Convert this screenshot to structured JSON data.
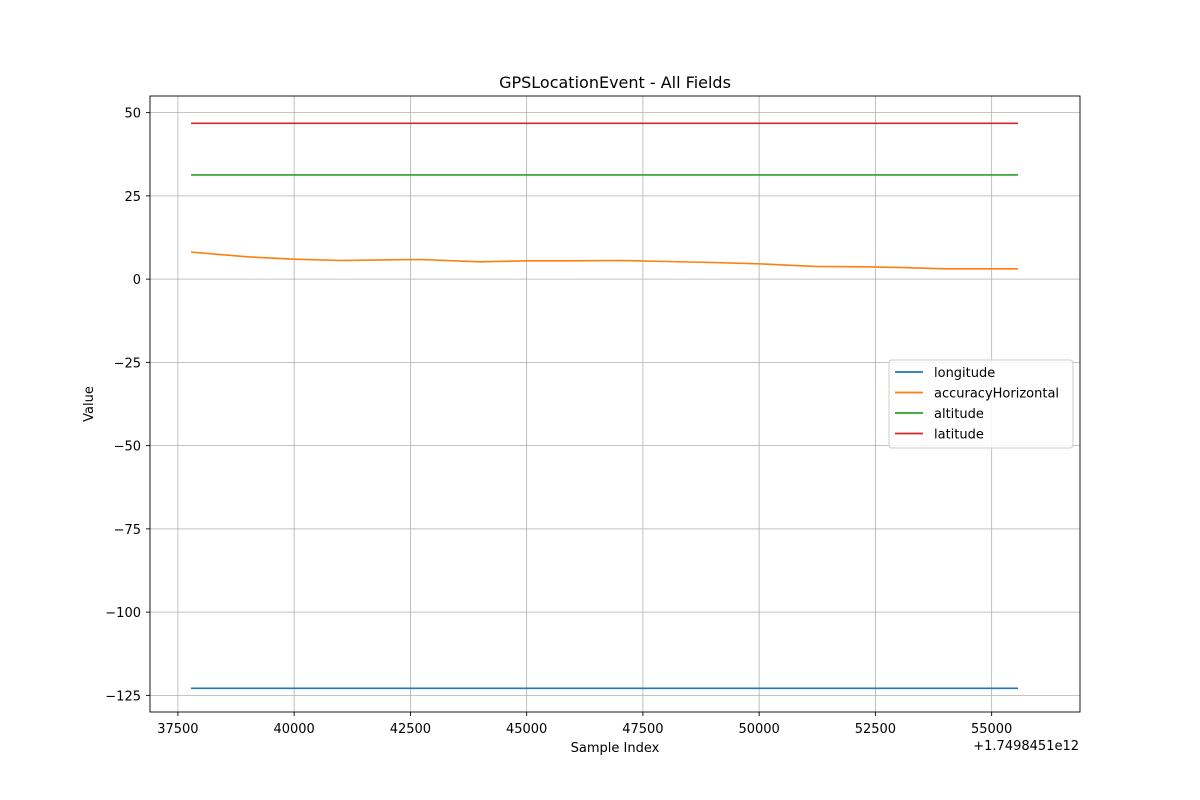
{
  "chart_data": {
    "type": "line",
    "title": "GPSLocationEvent - All Fields",
    "xlabel": "Sample Index",
    "ylabel": "Value",
    "x_offset_text": "+1.7498451e12",
    "xlim": [
      36900,
      56900
    ],
    "ylim": [
      -130,
      55
    ],
    "x_ticks": [
      37500,
      40000,
      42500,
      45000,
      47500,
      50000,
      52500,
      55000
    ],
    "y_ticks": [
      50,
      25,
      0,
      -25,
      -50,
      -75,
      -100,
      -125
    ],
    "x_tick_labels": [
      "37500",
      "40000",
      "42500",
      "45000",
      "47500",
      "50000",
      "52500",
      "55000"
    ],
    "y_tick_labels": [
      "50",
      "25",
      "0",
      "−25",
      "−50",
      "−75",
      "−100",
      "−125"
    ],
    "grid": true,
    "legend_position": "center-right",
    "series": [
      {
        "name": "longitude",
        "color": "#1f77b4",
        "points": [
          [
            37800,
            -122.9
          ],
          [
            55550,
            -122.9
          ]
        ]
      },
      {
        "name": "accuracyHorizontal",
        "color": "#ff7f0e",
        "points": [
          [
            37800,
            8.1
          ],
          [
            39000,
            6.7
          ],
          [
            40000,
            6.0
          ],
          [
            41000,
            5.6
          ],
          [
            42000,
            5.8
          ],
          [
            42700,
            5.9
          ],
          [
            44000,
            5.2
          ],
          [
            45000,
            5.5
          ],
          [
            46000,
            5.5
          ],
          [
            47000,
            5.6
          ],
          [
            48000,
            5.3
          ],
          [
            49000,
            5.0
          ],
          [
            50000,
            4.6
          ],
          [
            51200,
            3.8
          ],
          [
            52300,
            3.7
          ],
          [
            53000,
            3.5
          ],
          [
            54000,
            3.1
          ],
          [
            55550,
            3.1
          ]
        ]
      },
      {
        "name": "altitude",
        "color": "#2ca02c",
        "points": [
          [
            37800,
            31.3
          ],
          [
            55550,
            31.3
          ]
        ]
      },
      {
        "name": "latitude",
        "color": "#d62728",
        "points": [
          [
            37800,
            46.8
          ],
          [
            55550,
            46.8
          ]
        ]
      }
    ]
  }
}
